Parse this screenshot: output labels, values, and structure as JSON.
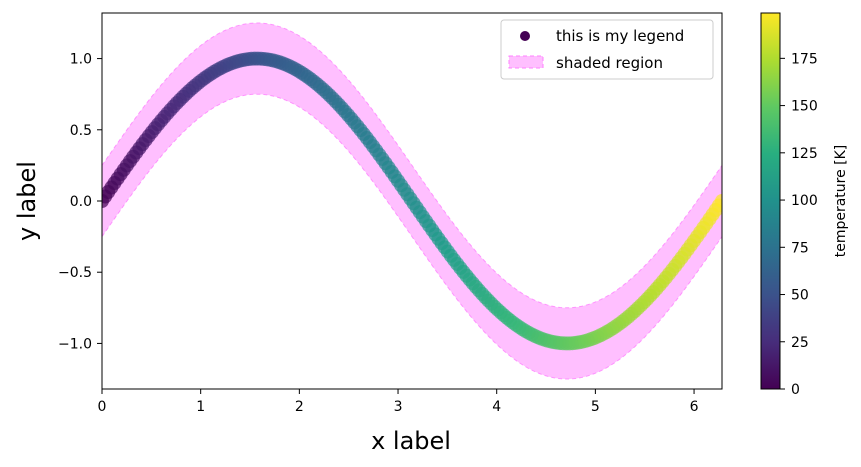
{
  "chart_data": {
    "type": "scatter",
    "xlabel": "x label",
    "ylabel": "y label",
    "xlim": [
      0,
      6.2832
    ],
    "ylim": [
      -1.32,
      1.32
    ],
    "xticks": [
      0,
      1,
      2,
      3,
      4,
      5,
      6
    ],
    "xtick_labels": [
      "0",
      "1",
      "2",
      "3",
      "4",
      "5",
      "6"
    ],
    "yticks": [
      -1.0,
      -0.5,
      0.0,
      0.5,
      1.0
    ],
    "ytick_labels": [
      "−1.0",
      "−0.5",
      "0.0",
      "0.5",
      "1.0"
    ],
    "grid": false,
    "legend_placement": "top-right",
    "legend": [
      {
        "label": "this is my legend",
        "kind": "marker",
        "color": "#440154"
      },
      {
        "label": "shaded region",
        "kind": "patch",
        "color": "#ff80ff"
      }
    ],
    "series": [
      {
        "name": "this is my legend",
        "function": "y = sin(x)",
        "x_range": [
          0,
          6.2832
        ],
        "num_points": 200,
        "color_values_range": [
          0,
          199
        ],
        "colormap": "viridis",
        "marker_alpha": 0.7
      }
    ],
    "shaded_region": {
      "name": "shaded region",
      "lower": "sin(x) - 0.25",
      "upper": "sin(x) + 0.25",
      "color": "#ff80ff",
      "alpha": 0.5
    },
    "colorbar": {
      "label": "temperature [K]",
      "range": [
        0,
        199
      ],
      "ticks": [
        0,
        25,
        50,
        75,
        100,
        125,
        150,
        175
      ],
      "colormap": "viridis"
    }
  }
}
